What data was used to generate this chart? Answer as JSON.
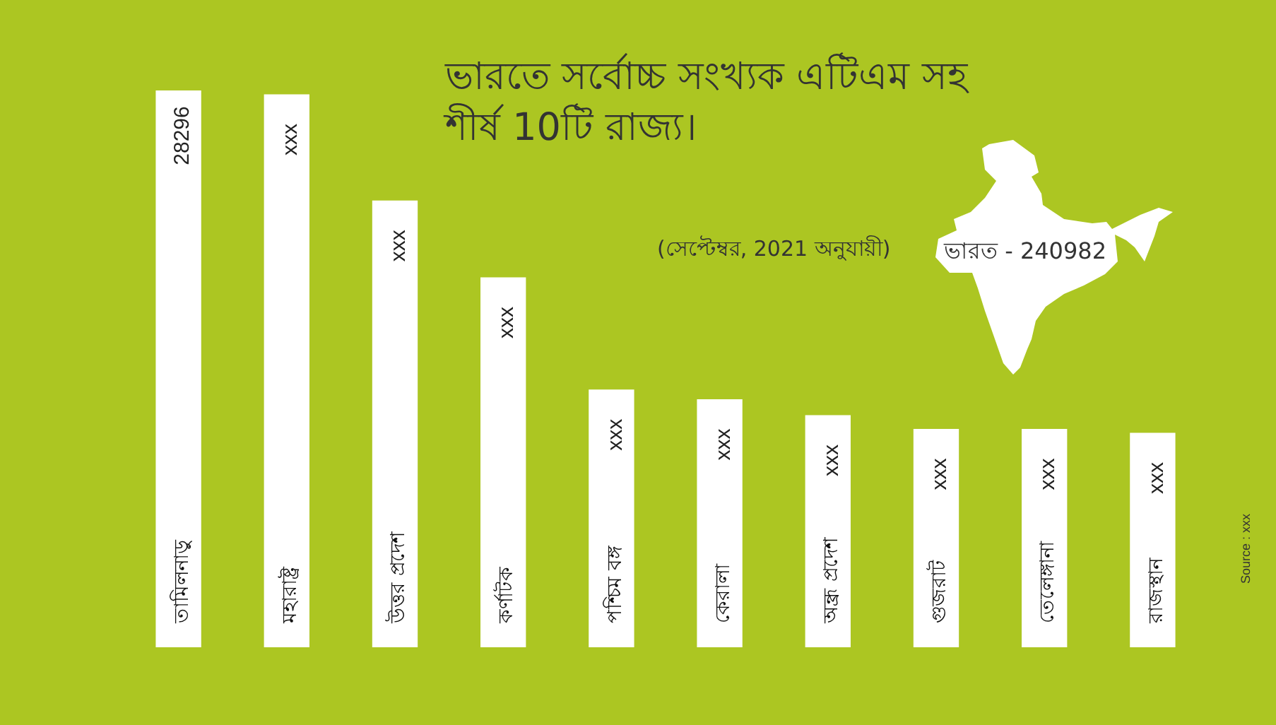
{
  "chart_data": {
    "type": "bar",
    "title": "ভারতে সর্বোচ্চ সংখ্যক এটিএম সহ\nশীর্ষ 10টি রাজ্য।",
    "subtitle": "(সেপ্টেম্বর, 2021 অনুযায়ী)",
    "categories": [
      "তামিলনাড়ু",
      "মহারাষ্ট্র",
      "উত্তর প্রদেশ",
      "কর্ণাটক",
      "পশ্চিম বঙ্গ",
      "কেরালা",
      "অন্ধ্র প্রদেশ",
      "গুজরাট",
      "তেলেঙ্গানা",
      "রাজস্থান"
    ],
    "values": [
      28296,
      28100,
      22700,
      18800,
      13100,
      12600,
      11800,
      11100,
      11100,
      10900
    ],
    "value_labels": [
      "28296",
      "xxx",
      "xxx",
      "xxx",
      "xxx",
      "xxx",
      "xxx",
      "xxx",
      "xxx",
      "xxx"
    ],
    "color": "#ffffff",
    "tick_labels": "x",
    "annotations": [
      "ভারত - 240982",
      "Source : xxx"
    ]
  }
}
